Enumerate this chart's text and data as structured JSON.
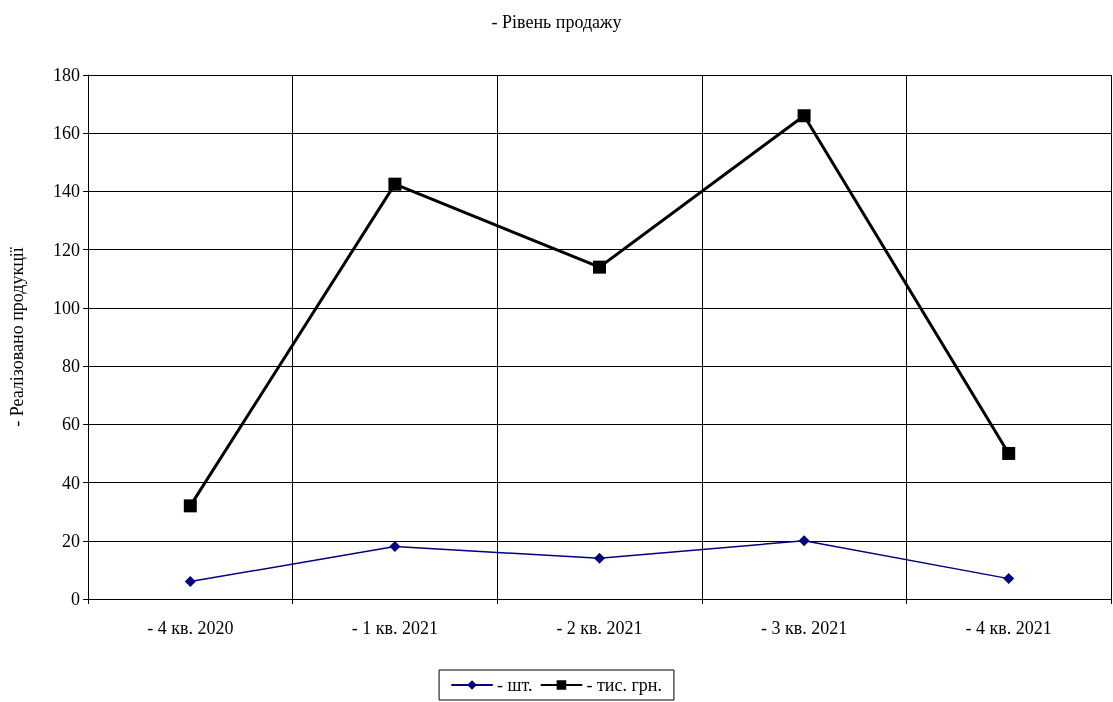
{
  "chart_data": {
    "type": "line",
    "title": "- Рівень продажу",
    "ylabel": "- Реалізовано продукції",
    "categories": [
      "- 4 кв. 2020",
      "- 1 кв. 2021",
      "- 2 кв. 2021",
      "- 3 кв. 2021",
      "- 4 кв. 2021"
    ],
    "series": [
      {
        "name": "- шт.",
        "color": "#000080",
        "marker": "diamond",
        "values": [
          6,
          18,
          14,
          20,
          7
        ]
      },
      {
        "name": "- тис. грн.",
        "color": "#000000",
        "marker": "square",
        "values": [
          32,
          142.5,
          114,
          166,
          50
        ]
      }
    ],
    "ylim": [
      0,
      180
    ],
    "yticks": [
      0,
      20,
      40,
      60,
      80,
      100,
      120,
      140,
      160,
      180
    ],
    "grid": true,
    "legend": "bottom",
    "line_style": "solid"
  }
}
